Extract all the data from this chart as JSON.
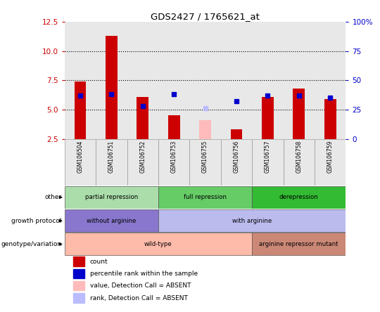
{
  "title": "GDS2427 / 1765621_at",
  "samples": [
    "GSM106504",
    "GSM106751",
    "GSM106752",
    "GSM106753",
    "GSM106755",
    "GSM106756",
    "GSM106757",
    "GSM106758",
    "GSM106759"
  ],
  "bar_values": [
    7.4,
    11.3,
    6.1,
    4.5,
    null,
    3.3,
    6.1,
    6.8,
    5.9
  ],
  "bar_color": "#cc0000",
  "absent_bar_values": [
    null,
    null,
    null,
    null,
    4.1,
    null,
    null,
    null,
    null
  ],
  "absent_bar_color": "#ffbbbb",
  "percentile_values": [
    6.2,
    6.3,
    5.3,
    6.3,
    null,
    5.7,
    6.2,
    6.2,
    6.0
  ],
  "absent_rank_values": [
    null,
    null,
    null,
    null,
    5.1,
    null,
    null,
    null,
    null
  ],
  "absent_rank_color": "#bbbbff",
  "percentile_color": "#0000cc",
  "ylim_left": [
    2.5,
    12.5
  ],
  "ylim_right": [
    0,
    100
  ],
  "left_yticks": [
    2.5,
    5.0,
    7.5,
    10.0,
    12.5
  ],
  "right_yticks": [
    0,
    25,
    50,
    75,
    100
  ],
  "dotted_lines": [
    5.0,
    7.5,
    10.0
  ],
  "left_tick_color": "#cc0000",
  "right_tick_color": "#0000cc",
  "bg_col": "#e8e8e8",
  "annotation_rows": [
    {
      "label": "other",
      "segments": [
        {
          "text": "partial repression",
          "start": 0,
          "end": 2,
          "color": "#aaddaa"
        },
        {
          "text": "full repression",
          "start": 3,
          "end": 5,
          "color": "#66cc66"
        },
        {
          "text": "derepression",
          "start": 6,
          "end": 8,
          "color": "#33bb33"
        }
      ]
    },
    {
      "label": "growth protocol",
      "segments": [
        {
          "text": "without arginine",
          "start": 0,
          "end": 2,
          "color": "#8877cc"
        },
        {
          "text": "with arginine",
          "start": 3,
          "end": 8,
          "color": "#bbbbee"
        }
      ]
    },
    {
      "label": "genotype/variation",
      "segments": [
        {
          "text": "wild-type",
          "start": 0,
          "end": 5,
          "color": "#ffbbaa"
        },
        {
          "text": "arginine repressor mutant",
          "start": 6,
          "end": 8,
          "color": "#cc8877"
        }
      ]
    }
  ],
  "legend_items": [
    {
      "label": "count",
      "color": "#cc0000"
    },
    {
      "label": "percentile rank within the sample",
      "color": "#0000cc"
    },
    {
      "label": "value, Detection Call = ABSENT",
      "color": "#ffbbbb"
    },
    {
      "label": "rank, Detection Call = ABSENT",
      "color": "#bbbbff"
    }
  ]
}
